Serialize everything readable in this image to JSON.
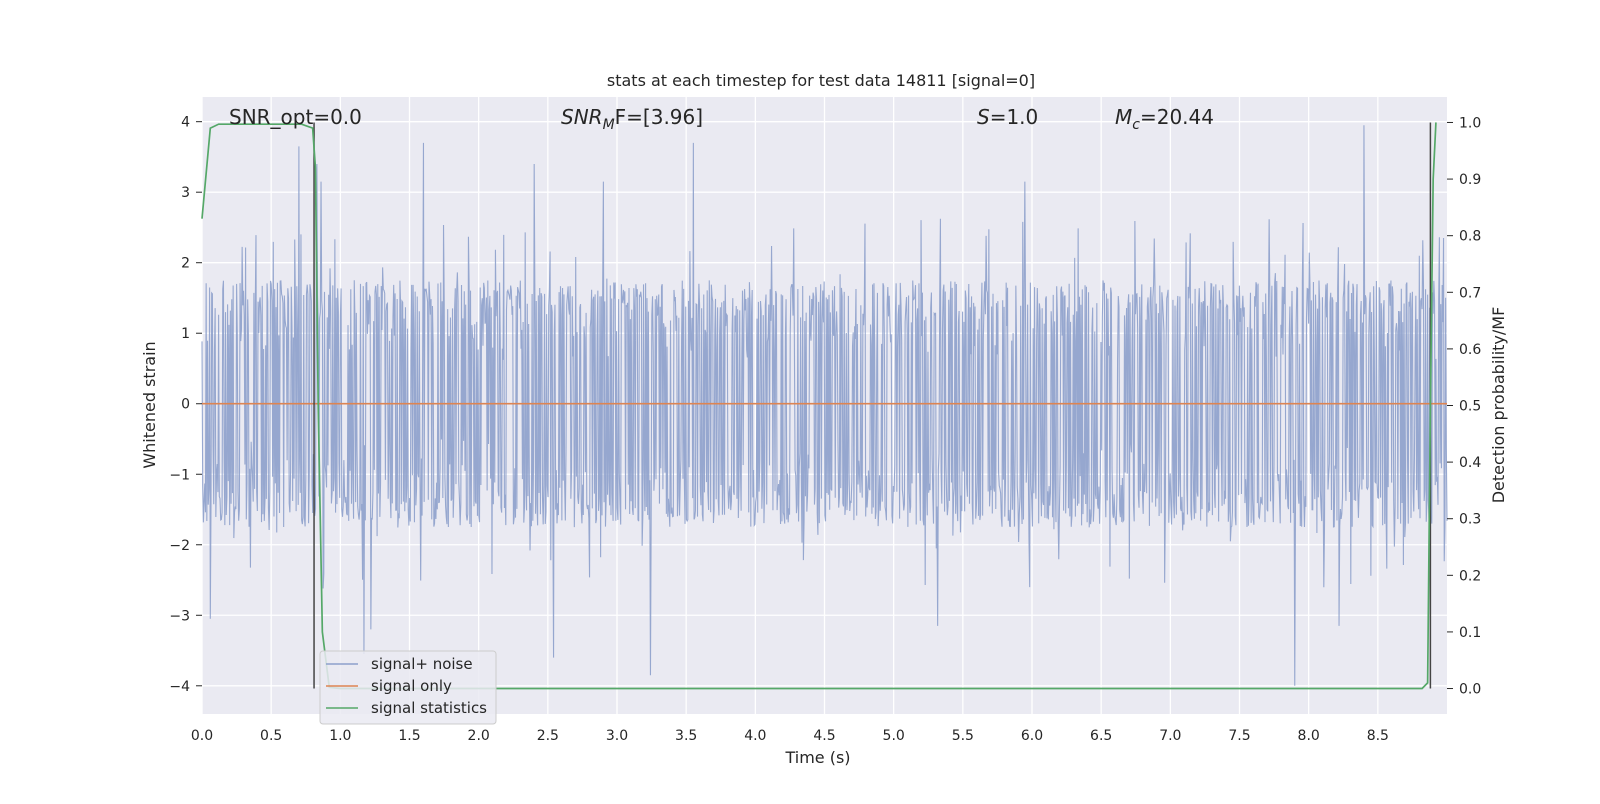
{
  "chart_data": {
    "type": "line",
    "title": "stats at each timestep for test data 14811 [signal=0]",
    "xlabel": "Time (s)",
    "ylabel_left": "Whitened strain",
    "ylabel_right": "Detection probability/MF",
    "xlim": [
      0.0,
      9.0
    ],
    "ylim_left": [
      -4.4,
      4.35
    ],
    "ylim_right": [
      -0.045,
      1.045
    ],
    "x_ticks": [
      "0.0",
      "0.5",
      "1.0",
      "1.5",
      "2.0",
      "2.5",
      "3.0",
      "3.5",
      "4.0",
      "4.5",
      "5.0",
      "5.5",
      "6.0",
      "6.5",
      "7.0",
      "7.5",
      "8.0",
      "8.5"
    ],
    "y_ticks_left": [
      "4",
      "3",
      "2",
      "1",
      "0",
      "−1",
      "−2",
      "−3",
      "−4"
    ],
    "y_ticks_right": [
      "1.0",
      "0.9",
      "0.8",
      "0.7",
      "0.6",
      "0.5",
      "0.4",
      "0.3",
      "0.2",
      "0.1",
      "0.0"
    ],
    "grid": true,
    "legend_position": "lower-left",
    "annotations": {
      "snr_opt": "SNR_opt=0.0",
      "snr_mf_base": "SNR",
      "snr_mf_sub": "M",
      "snr_mf_rest": "F=[3.96]",
      "s_label": "S",
      "s_value": "=1.0",
      "mc_base": "M",
      "mc_sub": "c",
      "mc_value": "=20.44"
    },
    "series": [
      {
        "name": "signal+ noise",
        "axis": "left",
        "color": "#8da0cb",
        "x_range": [
          0.0,
          9.0
        ],
        "samples": 1800,
        "typical_amplitude": [
          -1.75,
          1.75
        ],
        "peaks": [
          {
            "x": 0.7,
            "y": 3.65
          },
          {
            "x": 0.83,
            "y": 3.4
          },
          {
            "x": 0.86,
            "y": 3.15
          },
          {
            "x": 1.6,
            "y": 3.7
          },
          {
            "x": 2.4,
            "y": 3.4
          },
          {
            "x": 2.9,
            "y": 3.15
          },
          {
            "x": 3.55,
            "y": 3.7
          },
          {
            "x": 5.95,
            "y": 3.15
          },
          {
            "x": 8.4,
            "y": 3.95
          },
          {
            "x": 0.06,
            "y": -3.05
          },
          {
            "x": 1.17,
            "y": -3.55
          },
          {
            "x": 1.22,
            "y": -3.2
          },
          {
            "x": 2.54,
            "y": -3.6
          },
          {
            "x": 3.24,
            "y": -3.85
          },
          {
            "x": 5.32,
            "y": -3.15
          },
          {
            "x": 7.9,
            "y": -4.0
          },
          {
            "x": 8.22,
            "y": -3.15
          }
        ]
      },
      {
        "name": "signal only",
        "axis": "left",
        "color": "#dd8452",
        "x": [
          0.0,
          9.0
        ],
        "y": [
          0.0,
          0.0
        ]
      },
      {
        "name": "signal statistics",
        "axis": "right",
        "color": "#55a868",
        "x": [
          0.0,
          0.06,
          0.12,
          0.3,
          0.5,
          0.72,
          0.8,
          0.82,
          0.84,
          0.87,
          0.92,
          1.0,
          2.0,
          4.0,
          6.0,
          8.0,
          8.82,
          8.86,
          8.88,
          8.9,
          8.92
        ],
        "y": [
          0.83,
          0.99,
          0.997,
          0.997,
          0.997,
          0.997,
          0.99,
          0.92,
          0.5,
          0.1,
          0.002,
          0.0,
          0.0,
          0.0,
          0.0,
          0.0,
          0.0,
          0.01,
          0.5,
          0.9,
          1.0
        ]
      }
    ],
    "vertical_lines": [
      0.81,
      8.88
    ]
  }
}
